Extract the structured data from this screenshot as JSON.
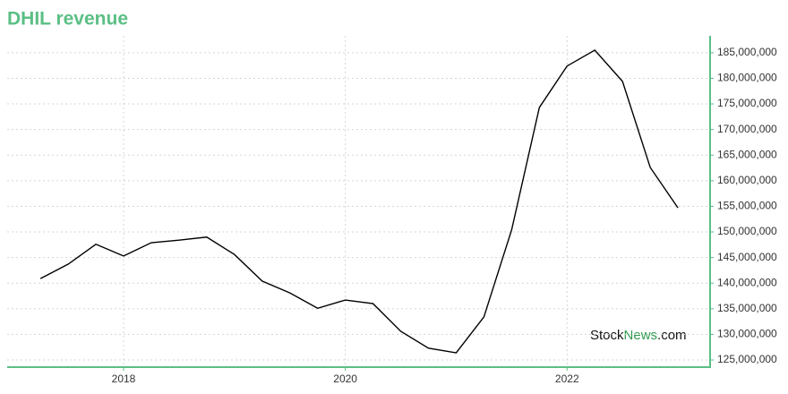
{
  "chart_data": {
    "type": "line",
    "title": "DHIL revenue",
    "watermark": [
      "Stock",
      "News",
      ".com"
    ],
    "x": [
      2017.25,
      2017.5,
      2017.75,
      2018.0,
      2018.25,
      2018.5,
      2018.75,
      2019.0,
      2019.25,
      2019.5,
      2019.75,
      2020.0,
      2020.25,
      2020.5,
      2020.75,
      2021.0,
      2021.25,
      2021.5,
      2021.75,
      2022.0,
      2022.25,
      2022.5,
      2022.75,
      2023.0
    ],
    "series": [
      {
        "name": "DHIL revenue",
        "color": "#000000",
        "values": [
          140900000,
          143700000,
          147600000,
          145300000,
          147900000,
          148400000,
          149000000,
          145600000,
          140400000,
          138100000,
          135100000,
          136700000,
          136000000,
          130600000,
          127300000,
          126400000,
          133400000,
          150400000,
          174300000,
          182400000,
          185500000,
          179400000,
          162600000,
          154700000
        ]
      }
    ],
    "xlim": [
      2016.95,
      2023.29
    ],
    "xticks": [
      2018,
      2020,
      2022
    ],
    "ylim": [
      123600000,
      188300000
    ],
    "yticks": [
      {
        "value": 125000000,
        "label": "125,000,000"
      },
      {
        "value": 130000000,
        "label": "130,000,000"
      },
      {
        "value": 135000000,
        "label": "135,000,000"
      },
      {
        "value": 140000000,
        "label": "140,000,000"
      },
      {
        "value": 145000000,
        "label": "145,000,000"
      },
      {
        "value": 150000000,
        "label": "150,000,000"
      },
      {
        "value": 155000000,
        "label": "155,000,000"
      },
      {
        "value": 160000000,
        "label": "160,000,000"
      },
      {
        "value": 165000000,
        "label": "165,000,000"
      },
      {
        "value": 170000000,
        "label": "170,000,000"
      },
      {
        "value": 175000000,
        "label": "175,000,000"
      },
      {
        "value": 180000000,
        "label": "180,000,000"
      },
      {
        "value": 185000000,
        "label": "185,000,000"
      }
    ],
    "grid": true,
    "axis_color": "#5bbf85"
  }
}
